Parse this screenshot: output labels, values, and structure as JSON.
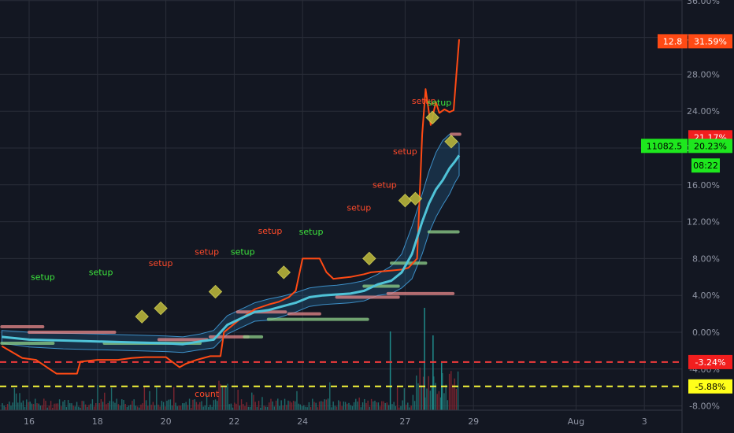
{
  "chart_data": {
    "type": "line",
    "y_ticks": [
      "-8.00%",
      "-4.00%",
      "0.00%",
      "4.00%",
      "8.00%",
      "12.00%",
      "16.00%",
      "20.00%",
      "24.00%",
      "28.00%",
      "32.00%",
      "36.00%"
    ],
    "y_tick_values": [
      -8,
      -4,
      0,
      4,
      8,
      12,
      16,
      20,
      24,
      28,
      32,
      36
    ],
    "ylim": [
      -8,
      36
    ],
    "x_ticks": [
      "16",
      "18",
      "20",
      "22",
      "24",
      "27",
      "29",
      "Aug",
      "3"
    ],
    "x_tick_values": [
      16,
      18,
      20,
      22,
      24,
      27,
      29,
      32,
      34
    ],
    "xlim": [
      15.2,
      35.5
    ],
    "grid": true,
    "price_tags": [
      {
        "left": "12.8",
        "right": "31.59%",
        "value": 31.59,
        "color": "#ff4a14"
      },
      {
        "left": "",
        "right": "21.17%",
        "value": 21.17,
        "color": "#f21e1e"
      },
      {
        "left": "11082.5",
        "right": "20.23%",
        "value": 20.23,
        "color": "#1ee71e"
      },
      {
        "left": "",
        "right": "08:22",
        "value": 18.1,
        "color": "#1ee71e"
      },
      {
        "left": "",
        "right": "-3.24%",
        "value": -3.24,
        "color": "#f21e1e"
      },
      {
        "left": "",
        "right": "-5.88%",
        "value": -5.88,
        "color": "#ffff1a"
      }
    ],
    "horizontal_lines": [
      {
        "value": -3.24,
        "color": "#f23b3b",
        "style": "dashed"
      },
      {
        "value": -5.88,
        "color": "#f5f53a",
        "style": "dashed"
      }
    ],
    "annotations": [
      {
        "text": "setup",
        "x": 16.4,
        "y": 5.7,
        "color": "#3de63d"
      },
      {
        "text": "setup",
        "x": 18.1,
        "y": 6.2,
        "color": "#3de63d"
      },
      {
        "text": "setup",
        "x": 19.85,
        "y": 7.2,
        "color": "#ff4a2a"
      },
      {
        "text": "setup",
        "x": 21.2,
        "y": 8.4,
        "color": "#ff4a2a"
      },
      {
        "text": "setup",
        "x": 22.25,
        "y": 8.4,
        "color": "#3de63d"
      },
      {
        "text": "setup",
        "x": 23.05,
        "y": 10.7,
        "color": "#ff4a2a"
      },
      {
        "text": "setup",
        "x": 24.25,
        "y": 10.6,
        "color": "#3de63d"
      },
      {
        "text": "setup",
        "x": 25.65,
        "y": 13.2,
        "color": "#ff4a2a"
      },
      {
        "text": "setup",
        "x": 26.4,
        "y": 15.7,
        "color": "#ff4a2a"
      },
      {
        "text": "setup",
        "x": 27.0,
        "y": 19.3,
        "color": "#ff4a2a"
      },
      {
        "text": "setup",
        "x": 27.55,
        "y": 24.8,
        "color": "#ff4a2a"
      },
      {
        "text": "setup",
        "x": 28.0,
        "y": 24.6,
        "color": "#3de63d"
      },
      {
        "text": "count",
        "x": 21.2,
        "y": -7.0,
        "color": "#ff4a2a"
      }
    ],
    "diamonds": [
      {
        "x": 19.3,
        "y": 1.7
      },
      {
        "x": 19.85,
        "y": 2.6
      },
      {
        "x": 21.45,
        "y": 4.4
      },
      {
        "x": 23.45,
        "y": 6.5
      },
      {
        "x": 25.95,
        "y": 8.0
      },
      {
        "x": 27.0,
        "y": 14.3
      },
      {
        "x": 27.3,
        "y": 14.5
      },
      {
        "x": 27.8,
        "y": 23.3
      },
      {
        "x": 28.35,
        "y": 20.7
      }
    ],
    "series": [
      {
        "color": "#ff4a14",
        "x": [
          15.2,
          15.8,
          16.2,
          16.6,
          16.8,
          17.4,
          17.5,
          18.0,
          18.6,
          19.0,
          19.4,
          20.0,
          20.4,
          20.6,
          20.9,
          21.3,
          21.6,
          21.7,
          22.2,
          22.6,
          23.0,
          23.3,
          23.6,
          23.8,
          24.0,
          24.5,
          24.7,
          24.9,
          25.4,
          25.8,
          26.0,
          26.3,
          26.6,
          26.9,
          27.1,
          27.35,
          27.5,
          27.6,
          27.75,
          27.9,
          28.0,
          28.15,
          28.3,
          28.42,
          28.5,
          28.58
        ],
        "y": [
          -1.5,
          -2.8,
          -3.0,
          -4.0,
          -4.5,
          -4.5,
          -3.2,
          -3.0,
          -3.0,
          -2.8,
          -2.7,
          -2.7,
          -3.8,
          -3.4,
          -3.0,
          -2.6,
          -2.6,
          0.0,
          1.5,
          2.5,
          3.0,
          3.3,
          3.8,
          4.5,
          8.0,
          8.0,
          6.5,
          5.8,
          6.0,
          6.3,
          6.5,
          6.6,
          6.7,
          6.8,
          7.0,
          8.0,
          21.5,
          26.4,
          22.5,
          25.0,
          23.8,
          24.2,
          23.9,
          24.1,
          28.0,
          31.8
        ]
      },
      {
        "color": "#4fc3d8",
        "x": [
          15.2,
          16.0,
          17.0,
          18.0,
          19.0,
          20.0,
          20.5,
          21.0,
          21.4,
          21.8,
          22.2,
          22.6,
          23.0,
          23.4,
          23.8,
          24.2,
          24.6,
          25.0,
          25.4,
          25.8,
          26.2,
          26.6,
          26.9,
          27.2,
          27.5,
          27.7,
          27.9,
          28.1,
          28.3,
          28.45,
          28.58
        ],
        "y": [
          -0.5,
          -0.8,
          -0.9,
          -1.0,
          -1.1,
          -1.2,
          -1.3,
          -1.0,
          -0.8,
          0.8,
          1.5,
          2.2,
          2.4,
          2.8,
          3.2,
          3.8,
          4.0,
          4.1,
          4.2,
          4.5,
          5.2,
          5.6,
          6.5,
          8.5,
          12.0,
          14.0,
          15.5,
          16.5,
          17.8,
          18.5,
          19.2
        ]
      }
    ],
    "bands": [
      {
        "upper": [
          0.2,
          0.0,
          -0.1,
          -0.2,
          -0.3,
          -0.4,
          -0.5,
          -0.2,
          0.2,
          1.8,
          2.5,
          3.2,
          3.6,
          3.9,
          4.3,
          4.8,
          5.0,
          5.1,
          5.3,
          5.6,
          6.3,
          7.2,
          8.5,
          11.5,
          15.0,
          17.5,
          19.5,
          20.8,
          21.5,
          21.0,
          20.5
        ],
        "lower": [
          -1.2,
          -1.6,
          -1.8,
          -1.9,
          -2.0,
          -2.1,
          -2.2,
          -1.9,
          -1.7,
          -0.2,
          0.5,
          1.2,
          1.3,
          1.7,
          2.2,
          2.8,
          3.0,
          3.1,
          3.2,
          3.4,
          4.0,
          4.2,
          4.8,
          5.8,
          8.5,
          10.8,
          12.5,
          13.8,
          15.0,
          16.2,
          17.0
        ]
      }
    ],
    "levels": [
      {
        "x1": 15.2,
        "x2": 16.4,
        "y": 0.6,
        "color": "#e8898a"
      },
      {
        "x1": 15.2,
        "x2": 16.7,
        "y": -1.2,
        "color": "#8fd18a"
      },
      {
        "x1": 16.0,
        "x2": 18.5,
        "y": 0.0,
        "color": "#e8898a"
      },
      {
        "x1": 18.2,
        "x2": 21.0,
        "y": -1.2,
        "color": "#8fd18a"
      },
      {
        "x1": 19.8,
        "x2": 21.2,
        "y": -0.8,
        "color": "#e8898a"
      },
      {
        "x1": 21.3,
        "x2": 22.4,
        "y": -0.5,
        "color": "#e8898a"
      },
      {
        "x1": 22.1,
        "x2": 23.5,
        "y": 2.2,
        "color": "#e8898a"
      },
      {
        "x1": 22.3,
        "x2": 22.8,
        "y": -0.5,
        "color": "#8fd18a"
      },
      {
        "x1": 23.0,
        "x2": 25.9,
        "y": 1.4,
        "color": "#8fd18a"
      },
      {
        "x1": 23.6,
        "x2": 24.5,
        "y": 2.0,
        "color": "#e8898a"
      },
      {
        "x1": 25.0,
        "x2": 26.8,
        "y": 3.8,
        "color": "#e8898a"
      },
      {
        "x1": 25.8,
        "x2": 26.8,
        "y": 5.0,
        "color": "#8fd18a"
      },
      {
        "x1": 26.5,
        "x2": 28.4,
        "y": 4.2,
        "color": "#e8898a"
      },
      {
        "x1": 26.6,
        "x2": 27.6,
        "y": 7.5,
        "color": "#8fd18a"
      },
      {
        "x1": 27.7,
        "x2": 28.55,
        "y": 10.9,
        "color": "#8fd18a"
      },
      {
        "x1": 28.35,
        "x2": 28.6,
        "y": 21.5,
        "color": "#e8898a"
      }
    ]
  }
}
